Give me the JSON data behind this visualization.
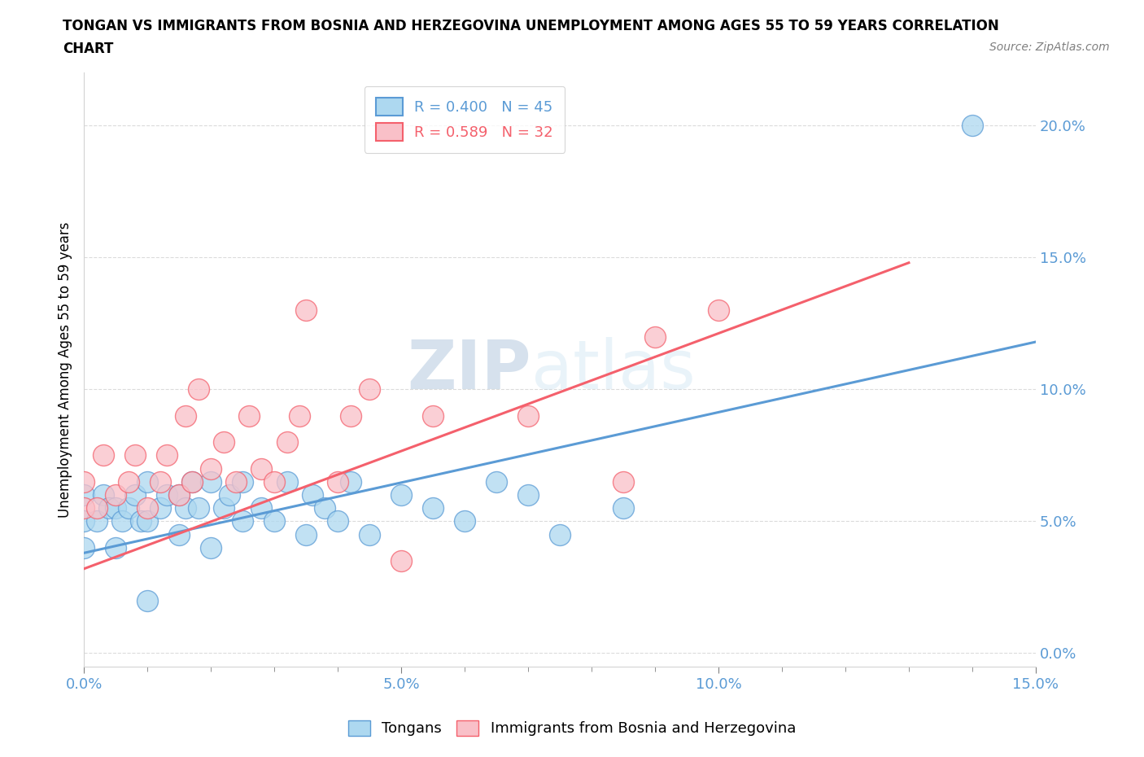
{
  "title_line1": "TONGAN VS IMMIGRANTS FROM BOSNIA AND HERZEGOVINA UNEMPLOYMENT AMONG AGES 55 TO 59 YEARS CORRELATION",
  "title_line2": "CHART",
  "source": "Source: ZipAtlas.com",
  "ylabel_label": "Unemployment Among Ages 55 to 59 years",
  "xmin": 0.0,
  "xmax": 0.15,
  "ymin": -0.005,
  "ymax": 0.22,
  "ytick_labels": [
    "0.0%",
    "5.0%",
    "10.0%",
    "15.0%",
    "20.0%"
  ],
  "ytick_vals": [
    0.0,
    0.05,
    0.1,
    0.15,
    0.2
  ],
  "xtick_labels": [
    "0.0%",
    "",
    "",
    "",
    "",
    "5.0%",
    "",
    "",
    "",
    "",
    "10.0%",
    "",
    "",
    "",
    "",
    "15.0%"
  ],
  "xtick_vals": [
    0.0,
    0.01,
    0.02,
    0.03,
    0.04,
    0.05,
    0.06,
    0.07,
    0.08,
    0.09,
    0.1,
    0.11,
    0.12,
    0.13,
    0.14,
    0.15
  ],
  "blue_color": "#ADD8F0",
  "pink_color": "#F9C0C8",
  "blue_edge_color": "#5B9BD5",
  "pink_edge_color": "#F4606C",
  "legend_blue_text": "R = 0.400   N = 45",
  "legend_pink_text": "R = 0.589   N = 32",
  "watermark_zip": "ZIP",
  "watermark_atlas": "atlas",
  "blue_points_x": [
    0.0,
    0.0,
    0.0,
    0.002,
    0.003,
    0.004,
    0.005,
    0.005,
    0.006,
    0.007,
    0.008,
    0.009,
    0.01,
    0.01,
    0.01,
    0.012,
    0.013,
    0.015,
    0.015,
    0.016,
    0.017,
    0.018,
    0.02,
    0.02,
    0.022,
    0.023,
    0.025,
    0.025,
    0.028,
    0.03,
    0.032,
    0.035,
    0.036,
    0.038,
    0.04,
    0.042,
    0.045,
    0.05,
    0.055,
    0.06,
    0.065,
    0.07,
    0.075,
    0.085,
    0.14
  ],
  "blue_points_y": [
    0.04,
    0.05,
    0.06,
    0.05,
    0.06,
    0.055,
    0.04,
    0.055,
    0.05,
    0.055,
    0.06,
    0.05,
    0.02,
    0.05,
    0.065,
    0.055,
    0.06,
    0.045,
    0.06,
    0.055,
    0.065,
    0.055,
    0.04,
    0.065,
    0.055,
    0.06,
    0.05,
    0.065,
    0.055,
    0.05,
    0.065,
    0.045,
    0.06,
    0.055,
    0.05,
    0.065,
    0.045,
    0.06,
    0.055,
    0.05,
    0.065,
    0.06,
    0.045,
    0.055,
    0.2
  ],
  "pink_points_x": [
    0.0,
    0.0,
    0.002,
    0.003,
    0.005,
    0.007,
    0.008,
    0.01,
    0.012,
    0.013,
    0.015,
    0.016,
    0.017,
    0.018,
    0.02,
    0.022,
    0.024,
    0.026,
    0.028,
    0.03,
    0.032,
    0.034,
    0.035,
    0.04,
    0.042,
    0.045,
    0.05,
    0.055,
    0.07,
    0.085,
    0.09,
    0.1
  ],
  "pink_points_y": [
    0.055,
    0.065,
    0.055,
    0.075,
    0.06,
    0.065,
    0.075,
    0.055,
    0.065,
    0.075,
    0.06,
    0.09,
    0.065,
    0.1,
    0.07,
    0.08,
    0.065,
    0.09,
    0.07,
    0.065,
    0.08,
    0.09,
    0.13,
    0.065,
    0.09,
    0.1,
    0.035,
    0.09,
    0.09,
    0.065,
    0.12,
    0.13
  ],
  "blue_trend_x": [
    0.0,
    0.15
  ],
  "blue_trend_y": [
    0.038,
    0.118
  ],
  "pink_trend_x": [
    0.0,
    0.13
  ],
  "pink_trend_y": [
    0.032,
    0.148
  ]
}
